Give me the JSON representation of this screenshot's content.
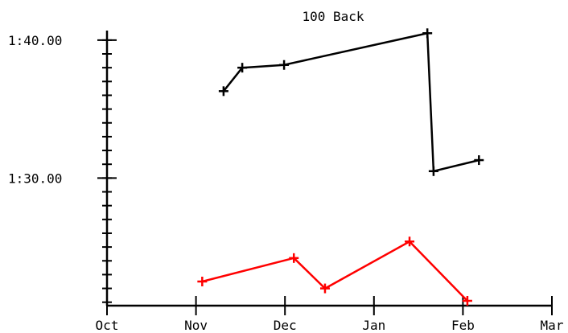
{
  "chart_data": {
    "type": "line",
    "title": "100 Back",
    "xlabel": "",
    "ylabel": "",
    "x_ticks": [
      "Oct",
      "Nov",
      "Dec",
      "Jan",
      "Feb",
      "Mar"
    ],
    "y_ticks": [
      "1:30.00",
      "1:40.00"
    ],
    "xlim": [
      0,
      5
    ],
    "ylim": [
      81.1,
      100.6
    ],
    "series": [
      {
        "color": "#000000",
        "points": [
          {
            "x": 1.31,
            "y": 96.3
          },
          {
            "x": 1.52,
            "y": 98.0
          },
          {
            "x": 1.99,
            "y": 98.2
          },
          {
            "x": 3.6,
            "y": 100.5
          },
          {
            "x": 3.67,
            "y": 90.5
          },
          {
            "x": 4.18,
            "y": 91.3
          }
        ]
      },
      {
        "color": "#ff0000",
        "points": [
          {
            "x": 1.07,
            "y": 82.5
          },
          {
            "x": 2.1,
            "y": 84.2
          },
          {
            "x": 2.45,
            "y": 82.0
          },
          {
            "x": 3.4,
            "y": 85.4
          },
          {
            "x": 4.05,
            "y": 81.1
          }
        ]
      }
    ],
    "grid": false,
    "legend": "none"
  }
}
